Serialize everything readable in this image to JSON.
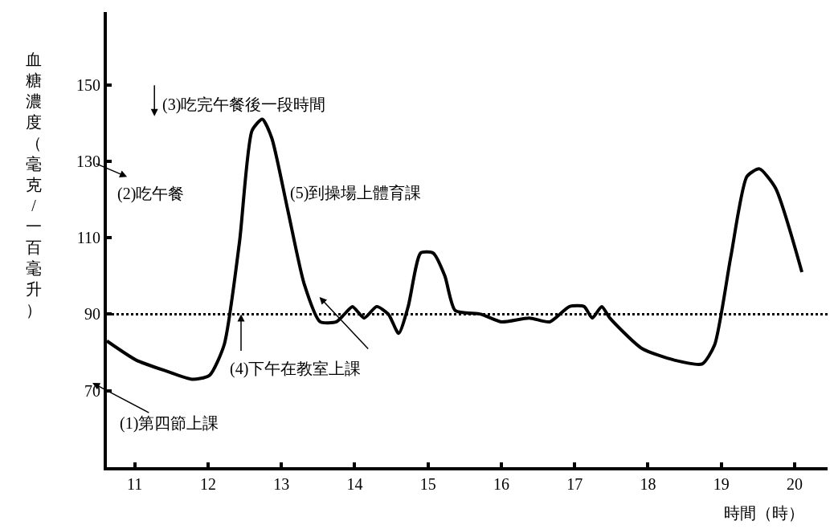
{
  "chart_data": {
    "type": "line",
    "xlabel": "時間（時）",
    "ylabel": "血糖濃度（毫克/一百毫升）",
    "x": [
      10.62,
      11.02,
      11.45,
      11.78,
      12.02,
      12.22,
      12.43,
      12.6,
      12.74,
      12.87,
      13.09,
      13.31,
      13.53,
      13.75,
      13.86,
      13.97,
      14.13,
      14.3,
      14.46,
      14.6,
      14.73,
      14.9,
      15.07,
      15.23,
      15.37,
      15.72,
      16.0,
      16.38,
      16.66,
      16.93,
      17.13,
      17.24,
      17.37,
      17.48,
      17.92,
      18.36,
      18.74,
      18.91,
      19.13,
      19.35,
      19.52,
      19.74,
      20.1
    ],
    "series": [
      {
        "color": "#000000",
        "values": [
          83,
          78,
          75,
          73,
          74,
          82,
          109,
          138,
          141,
          136,
          117,
          98,
          88,
          88,
          90,
          92,
          89,
          92,
          90,
          85,
          92,
          106,
          106,
          100,
          91,
          90,
          88,
          89,
          88,
          92,
          92,
          89,
          92,
          89,
          81,
          78,
          77,
          82,
          105,
          126,
          128,
          123,
          101
        ]
      }
    ],
    "xlim": [
      10.62,
      20.45
    ],
    "ylim": [
      50,
      169
    ],
    "xticks": [
      11,
      12,
      13,
      14,
      15,
      16,
      17,
      18,
      19,
      20
    ],
    "yticks": [
      70,
      90,
      110,
      130,
      150
    ],
    "ref_lines": [
      {
        "axis": "y",
        "value": 90,
        "line_style": "dotted",
        "color": "#000000"
      }
    ],
    "annotations": [
      "(1)第四節上課",
      "(2)吃午餐",
      "(3)吃完午餐後一段時間",
      {
        "text": "(4)下午在教室上課",
        "x": 12.45,
        "y": 90
      },
      "(5)到操場上體育課"
    ],
    "marker": "none",
    "line_style": "solid"
  }
}
